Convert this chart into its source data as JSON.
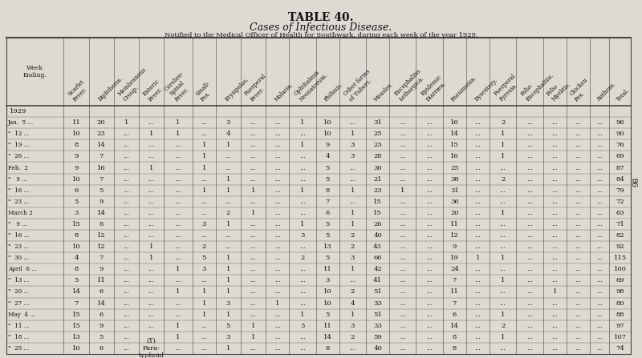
{
  "title": "TABLE 40.",
  "subtitle": "Cases of Infectious Disease.",
  "subtitle2": "Notified to the Medical Officer of Health for Southwark, during each week of the year 1929.",
  "col_headers": [
    "Week\nEnding.",
    "Scarlet\nFever.",
    "Diphtheria.",
    "Membranous\nCroup.",
    "Enteric\nFever.",
    "Cerebro-\nSpinal\nFever.",
    "Small-\nPox.",
    "Erysipelas.",
    "Puerperal\nFever.",
    "Malaria.",
    "Ophthalmia\nNeonatorum.",
    "Phthisis.",
    "Other forms\nof Tuberc.",
    "Measles.",
    "Encephalitis\nLethargica.",
    "Epidemic\nDiarræa.",
    "Pneumonia.",
    "Dysentery.",
    "Puerperal\nPyrexia.",
    "Polio\nEncephalitis.",
    "Polio\nMyelitis.",
    "Chicken\nPox.",
    "Anthrax.",
    "Total."
  ],
  "rows": [
    [
      "1929",
      "",
      "",
      "",
      "",
      "",
      "",
      "",
      "",
      "",
      "",
      "",
      "",
      "",
      "",
      "",
      "",
      "",
      "",
      "",
      "",
      "",
      "",
      ""
    ],
    [
      "Jan.  5 ...",
      "11",
      "20",
      "1",
      "...",
      "1",
      "...",
      "3",
      "...",
      "...",
      "1",
      "10",
      "...",
      "31",
      "...",
      "...",
      "16",
      "...",
      "2",
      "...",
      "...",
      "...",
      "...",
      "96"
    ],
    [
      "\"  12 ...",
      "10",
      "23",
      "...",
      "1",
      "1",
      "...",
      "4",
      "...",
      "...",
      "...",
      "10",
      "1",
      "25",
      "...",
      "...",
      "14",
      "...",
      "1",
      "...",
      "...",
      "...",
      "...",
      "90"
    ],
    [
      "\"  19 ...",
      "8",
      "14",
      "...",
      "...",
      "...",
      "1",
      "1",
      "...",
      "...",
      "1",
      "9",
      "3",
      "23",
      "...",
      "...",
      "15",
      "...",
      "1",
      "...",
      "...",
      "...",
      "...",
      "76"
    ],
    [
      "\"  26 ...",
      "9",
      "7",
      "...",
      "...",
      "...",
      "1",
      "...",
      "...",
      "...",
      "...",
      "4",
      "3",
      "28",
      "...",
      "...",
      "16",
      "...",
      "1",
      "...",
      "...",
      "...",
      "...",
      "69"
    ],
    [
      "Feb.  2",
      "9",
      "16",
      "...",
      "1",
      "...",
      "1",
      "...",
      "...",
      "...",
      "...",
      "5",
      "...",
      "30",
      "...",
      "...",
      "25",
      "...",
      "...",
      "...",
      "...",
      "...",
      "...",
      "87"
    ],
    [
      "\"   9 ...",
      "10",
      "7",
      "...",
      "...",
      "...",
      "...",
      "1",
      "...",
      "...",
      "...",
      "5",
      "...",
      "21",
      "...",
      "...",
      "38",
      "...",
      "2",
      "...",
      "...",
      "...",
      "...",
      "84"
    ],
    [
      "\"  16 ...",
      "6",
      "5",
      "...",
      "...",
      "...",
      "1",
      "1",
      "1",
      "...",
      "1",
      "8",
      "1",
      "23",
      "1",
      "...",
      "31",
      "...",
      "...",
      "...",
      "...",
      "...",
      "...",
      "79"
    ],
    [
      "\"  23 ...",
      "5",
      "9",
      "...",
      "...",
      "...",
      "...",
      "...",
      "...",
      "...",
      "...",
      "7",
      "...",
      "15",
      "...",
      "...",
      "36",
      "...",
      "...",
      "...",
      "...",
      "...",
      "...",
      "72"
    ],
    [
      "March 2",
      "3",
      "14",
      "...",
      "...",
      "...",
      "...",
      "2",
      "1",
      "...",
      "...",
      "6",
      "1",
      "15",
      "...",
      "...",
      "20",
      "...",
      "1",
      "...",
      "...",
      "...",
      "...",
      "63"
    ],
    [
      "\"   9 ...",
      "15",
      "8",
      "...",
      "...",
      "...",
      "3",
      "1",
      "...",
      "...",
      "1",
      "5",
      "1",
      "26",
      "...",
      "...",
      "11",
      "...",
      "...",
      "...",
      "...",
      "...",
      "...",
      "71"
    ],
    [
      "\"  16 ...",
      "8",
      "12",
      "...",
      "...",
      "...",
      "...",
      "...",
      "...",
      "...",
      "3",
      "5",
      "2",
      "40",
      "...",
      "...",
      "12",
      "...",
      "...",
      "...",
      "...",
      "...",
      "...",
      "82"
    ],
    [
      "\"  23 ...",
      "10",
      "12",
      "...",
      "1",
      "...",
      "2",
      "...",
      "...",
      "...",
      "...",
      "13",
      "2",
      "43",
      "...",
      "...",
      "9",
      "...",
      "...",
      "...",
      "...",
      "...",
      "...",
      "92"
    ],
    [
      "\"  30 ...",
      "4",
      "7",
      "...",
      "1",
      "...",
      "5",
      "1",
      "...",
      "...",
      "2",
      "5",
      "3",
      "66",
      "...",
      "...",
      "19",
      "1",
      "1",
      "...",
      "...",
      "...",
      "...",
      "115"
    ],
    [
      "April  6 ...",
      "8",
      "9",
      "...",
      "...",
      "1",
      "3",
      "1",
      "...",
      "...",
      "...",
      "11",
      "1",
      "42",
      "...",
      "...",
      "24",
      "...",
      "...",
      "...",
      "...",
      "...",
      "...",
      "100"
    ],
    [
      "\"  13 ...",
      "5",
      "11",
      "...",
      "...",
      "...",
      "...",
      "1",
      "...",
      "...",
      "...",
      "3",
      "...",
      "41",
      "...",
      "...",
      "7",
      "...",
      "1",
      "...",
      "...",
      "...",
      "...",
      "69"
    ],
    [
      "\"  20 ...",
      "14",
      "6",
      "...",
      "...",
      "1",
      "1",
      "1",
      "...",
      "...",
      "...",
      "10",
      "2",
      "51",
      "...",
      "...",
      "11",
      "...",
      "...",
      "...",
      "1",
      "...",
      "...",
      "98"
    ],
    [
      "\"  27 ...",
      "7",
      "14",
      "...",
      "...",
      "...",
      "1",
      "3",
      "...",
      "1",
      "...",
      "10",
      "4",
      "33",
      "...",
      "...",
      "7",
      "...",
      "...",
      "...",
      "...",
      "...",
      "...",
      "80"
    ],
    [
      "May  4 ...",
      "15",
      "6",
      "...",
      "...",
      "...",
      "1",
      "1",
      "...",
      "...",
      "1",
      "5",
      "1",
      "51",
      "...",
      "...",
      "6",
      "...",
      "1",
      "...",
      "...",
      "...",
      "...",
      "88"
    ],
    [
      "\"  11 ...",
      "15",
      "9",
      "...",
      "...",
      "1",
      "...",
      "5",
      "1",
      "...",
      "3",
      "11",
      "3",
      "33",
      "...",
      "...",
      "14",
      "...",
      "2",
      "...",
      "...",
      "...",
      "...",
      "97"
    ],
    [
      "\"  18 ...",
      "13",
      "5",
      "...",
      "...",
      "1",
      "...",
      "3",
      "1",
      "...",
      "...",
      "14",
      "2",
      "59",
      "...",
      "...",
      "8",
      "...",
      "1",
      "...",
      "...",
      "...",
      "...",
      "107"
    ],
    [
      "\"  25 ...",
      "10",
      "6",
      "...",
      "(1)\nPara-\ntyphoid",
      "...",
      "...",
      "1",
      "...",
      "...",
      "...",
      "8",
      "...",
      "40",
      "...",
      "...",
      "8",
      "...",
      "...",
      "...",
      "...",
      "...",
      "...",
      "74"
    ]
  ],
  "bg_color": "#dedad2",
  "text_color": "#111111",
  "title_fontsize": 10,
  "subtitle_fontsize": 9,
  "subtitle2_fontsize": 6,
  "header_fontsize": 5.0,
  "data_fontsize": 6.0,
  "side_number": "98",
  "col_widths_rel": [
    1.6,
    0.7,
    0.7,
    0.7,
    0.7,
    0.8,
    0.65,
    0.7,
    0.7,
    0.65,
    0.75,
    0.65,
    0.75,
    0.65,
    0.75,
    0.75,
    0.65,
    0.65,
    0.75,
    0.75,
    0.65,
    0.65,
    0.55,
    0.6
  ]
}
